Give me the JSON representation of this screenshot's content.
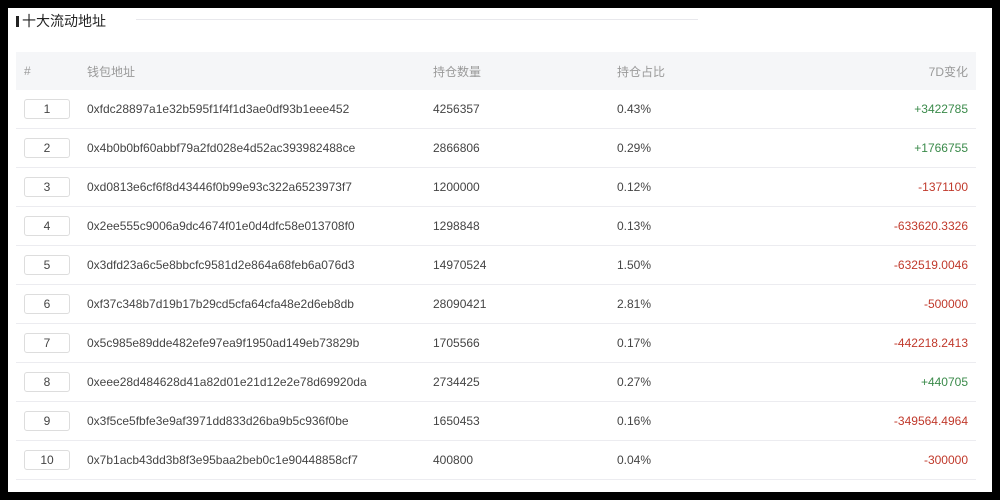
{
  "title": "十大流动地址",
  "columns": [
    "#",
    "钱包地址",
    "持仓数量",
    "持仓占比",
    "7D变化"
  ],
  "colors": {
    "positive": "#3a8a4a",
    "negative": "#c0392b"
  },
  "rows": [
    {
      "rank": "1",
      "address": "0xfdc28897a1e32b595f1f4f1d3ae0df93b1eee452",
      "amount": "4256357",
      "share": "0.43%",
      "change": "+3422785"
    },
    {
      "rank": "2",
      "address": "0x4b0b0bf60abbf79a2fd028e4d52ac393982488ce",
      "amount": "2866806",
      "share": "0.29%",
      "change": "+1766755"
    },
    {
      "rank": "3",
      "address": "0xd0813e6cf6f8d43446f0b99e93c322a6523973f7",
      "amount": "1200000",
      "share": "0.12%",
      "change": "-1371100"
    },
    {
      "rank": "4",
      "address": "0x2ee555c9006a9dc4674f01e0d4dfc58e013708f0",
      "amount": "1298848",
      "share": "0.13%",
      "change": "-633620.3326"
    },
    {
      "rank": "5",
      "address": "0x3dfd23a6c5e8bbcfc9581d2e864a68feb6a076d3",
      "amount": "14970524",
      "share": "1.50%",
      "change": "-632519.0046"
    },
    {
      "rank": "6",
      "address": "0xf37c348b7d19b17b29cd5cfa64cfa48e2d6eb8db",
      "amount": "28090421",
      "share": "2.81%",
      "change": "-500000"
    },
    {
      "rank": "7",
      "address": "0x5c985e89dde482efe97ea9f1950ad149eb73829b",
      "amount": "1705566",
      "share": "0.17%",
      "change": "-442218.2413"
    },
    {
      "rank": "8",
      "address": "0xeee28d484628d41a82d01e21d12e2e78d69920da",
      "amount": "2734425",
      "share": "0.27%",
      "change": "+440705"
    },
    {
      "rank": "9",
      "address": "0x3f5ce5fbfe3e9af3971dd833d26ba9b5c936f0be",
      "amount": "1650453",
      "share": "0.16%",
      "change": "-349564.4964"
    },
    {
      "rank": "10",
      "address": "0x7b1acb43dd3b8f3e95baa2beb0c1e90448858cf7",
      "amount": "400800",
      "share": "0.04%",
      "change": "-300000"
    }
  ]
}
